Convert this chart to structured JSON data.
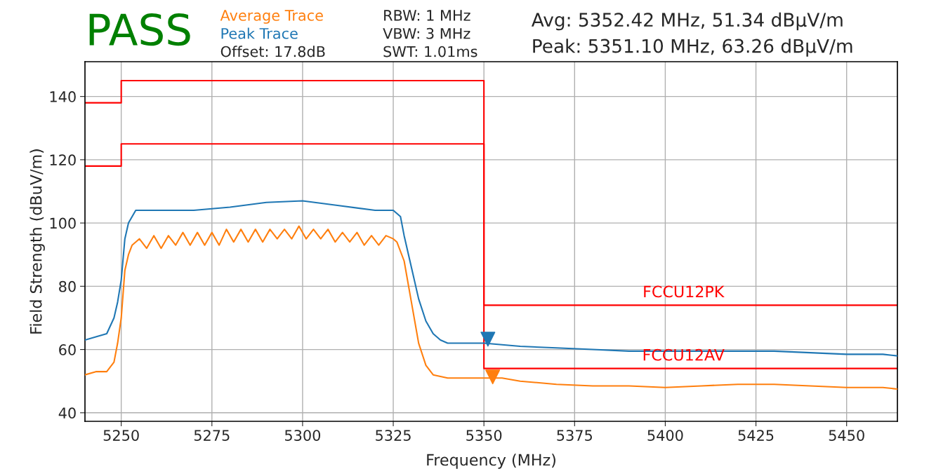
{
  "chart_data": {
    "type": "line",
    "title": "PASS",
    "xlabel": "Frequency (MHz)",
    "ylabel": "Field Strength (dBuV/m)",
    "xlim": [
      5240,
      5464
    ],
    "ylim": [
      37.3,
      151
    ],
    "xticks": [
      5250,
      5275,
      5300,
      5325,
      5350,
      5375,
      5400,
      5425,
      5450
    ],
    "yticks": [
      40,
      60,
      80,
      100,
      120,
      140
    ],
    "grid": true,
    "legend": false,
    "series": [
      {
        "name": "Average Trace",
        "color": "#ff7f0e",
        "x": [
          5240,
          5243,
          5246,
          5248,
          5249,
          5250,
          5251,
          5252,
          5253,
          5255,
          5257,
          5259,
          5261,
          5263,
          5265,
          5267,
          5269,
          5271,
          5273,
          5275,
          5277,
          5279,
          5281,
          5283,
          5285,
          5287,
          5289,
          5291,
          5293,
          5295,
          5297,
          5299,
          5301,
          5303,
          5305,
          5307,
          5309,
          5311,
          5313,
          5315,
          5317,
          5319,
          5321,
          5323,
          5325,
          5326,
          5328,
          5330,
          5332,
          5334,
          5336,
          5340,
          5345,
          5350,
          5355,
          5360,
          5370,
          5380,
          5390,
          5400,
          5410,
          5420,
          5430,
          5440,
          5450,
          5460,
          5464
        ],
        "values": [
          52,
          53,
          53,
          56,
          62,
          70,
          85,
          90,
          93,
          95,
          92,
          96,
          92,
          96,
          93,
          97,
          93,
          97,
          93,
          97,
          93,
          98,
          94,
          98,
          94,
          98,
          94,
          98,
          95,
          98,
          95,
          99,
          95,
          98,
          95,
          98,
          94,
          97,
          94,
          97,
          93,
          96,
          93,
          96,
          95,
          94,
          88,
          75,
          62,
          55,
          52,
          51,
          51,
          51,
          51,
          50,
          49,
          48.5,
          48.5,
          48,
          48.5,
          49,
          49,
          48.5,
          48,
          48,
          47.5
        ]
      },
      {
        "name": "Peak Trace",
        "color": "#1f77b4",
        "x": [
          5240,
          5243,
          5246,
          5248,
          5249,
          5250,
          5251,
          5252,
          5254,
          5260,
          5270,
          5280,
          5290,
          5300,
          5310,
          5320,
          5325,
          5327,
          5328,
          5330,
          5332,
          5334,
          5336,
          5338,
          5340,
          5350,
          5360,
          5370,
          5380,
          5390,
          5400,
          5410,
          5420,
          5430,
          5440,
          5450,
          5460,
          5464
        ],
        "values": [
          63,
          64,
          65,
          70,
          75,
          82,
          95,
          100,
          104,
          104,
          104,
          105,
          106.5,
          107,
          105.5,
          104,
          104,
          102,
          96,
          86,
          76,
          69,
          65,
          63,
          62,
          62,
          61,
          60.5,
          60,
          59.5,
          59.5,
          59.5,
          59.5,
          59.5,
          59,
          58.5,
          58.5,
          58
        ]
      },
      {
        "type": "step",
        "color": "#ff0000",
        "x": [
          5240,
          5250,
          5350,
          5464
        ],
        "values": [
          138,
          145,
          74,
          74
        ]
      },
      {
        "type": "step",
        "color": "#ff0000",
        "x": [
          5240,
          5250,
          5350,
          5464
        ],
        "values": [
          118,
          125,
          54,
          54
        ]
      },
      {
        "type": "scatter",
        "color": "#1f77b4",
        "marker": "triangle",
        "x": [
          5351.1
        ],
        "values": [
          63.26
        ]
      },
      {
        "type": "scatter",
        "color": "#ff7f0e",
        "marker": "triangle",
        "x": [
          5352.42
        ],
        "values": [
          51.34
        ]
      }
    ],
    "annotations": [
      "Offset: 17.8dB",
      "RBW: 1 MHz",
      "VBW: 3 MHz",
      "SWT: 1.01ms",
      "Avg: 5352.42 MHz, 51.34 dBμV/m",
      "Peak: 5351.10 MHz, 63.26 dBμV/m",
      {
        "text": "FCCU12PK",
        "x": 5405,
        "y": 74
      },
      {
        "text": "FCCU12AV",
        "x": 5405,
        "y": 54
      }
    ]
  }
}
